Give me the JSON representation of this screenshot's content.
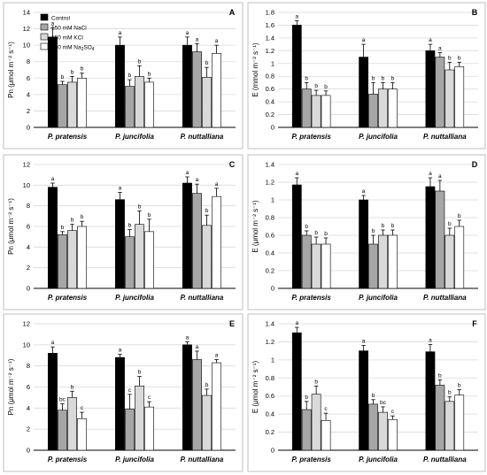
{
  "legend": {
    "entries": [
      {
        "label": "Control",
        "color": "#000000"
      },
      {
        "label": "150 mM NaCl",
        "color": "#a6a6a6"
      },
      {
        "label": "150 mM KCl",
        "color": "#d9d9d9"
      },
      {
        "label": "150 mM Na2SO4",
        "color": "#ffffff"
      }
    ]
  },
  "chart_data": [
    {
      "panel": "A",
      "type": "bar",
      "ylabel": "Pn (μmol m⁻² s⁻¹)",
      "ylim": [
        0,
        14
      ],
      "yticks": [
        0,
        2,
        4,
        6,
        8,
        10,
        12,
        14
      ],
      "grid": true,
      "categories": [
        "P. pratensis",
        "P. juncifolia",
        "P. nuttalliana"
      ],
      "series": [
        {
          "name": "Control",
          "values": [
            11.0,
            10.0,
            10.0
          ],
          "errors": [
            1.1,
            1.0,
            1.0
          ],
          "letters": [
            "a",
            "a",
            "a"
          ]
        },
        {
          "name": "150 mM NaCl",
          "values": [
            5.2,
            5.0,
            9.2
          ],
          "errors": [
            0.4,
            0.8,
            1.0
          ],
          "letters": [
            "b",
            "b",
            "a"
          ]
        },
        {
          "name": "150 mM KCl",
          "values": [
            5.5,
            6.2,
            6.1
          ],
          "errors": [
            0.7,
            1.3,
            1.2
          ],
          "letters": [
            "b",
            "b",
            "b"
          ]
        },
        {
          "name": "150 mM Na2SO4",
          "values": [
            6.0,
            5.5,
            9.0
          ],
          "errors": [
            0.6,
            0.5,
            1.0
          ],
          "letters": [
            "b",
            "b",
            "a"
          ]
        }
      ]
    },
    {
      "panel": "B",
      "type": "bar",
      "ylabel": "E (mmol m⁻² s⁻¹)",
      "ylim": [
        0,
        1.8
      ],
      "yticks": [
        0,
        0.2,
        0.4,
        0.6,
        0.8,
        1,
        1.2,
        1.4,
        1.6,
        1.8
      ],
      "grid": true,
      "categories": [
        "P. pratensis",
        "P. juncifolia",
        "P. nuttalliana"
      ],
      "series": [
        {
          "name": "Control",
          "values": [
            1.6,
            1.1,
            1.2
          ],
          "errors": [
            0.07,
            0.2,
            0.1
          ],
          "letters": [
            "a",
            "a",
            "a"
          ]
        },
        {
          "name": "150 mM NaCl",
          "values": [
            0.6,
            0.52,
            1.1
          ],
          "errors": [
            0.1,
            0.18,
            0.07
          ],
          "letters": [
            "b",
            "b",
            "a"
          ]
        },
        {
          "name": "150 mM KCl",
          "values": [
            0.5,
            0.6,
            0.9
          ],
          "errors": [
            0.08,
            0.1,
            0.12
          ],
          "letters": [
            "b",
            "b",
            "b"
          ]
        },
        {
          "name": "150 mM Na2SO4",
          "values": [
            0.5,
            0.6,
            0.95
          ],
          "errors": [
            0.07,
            0.1,
            0.07
          ],
          "letters": [
            "b",
            "b",
            "b"
          ]
        }
      ]
    },
    {
      "panel": "C",
      "type": "bar",
      "ylabel": "Pn (μmol m⁻² s⁻¹)",
      "ylim": [
        0,
        12
      ],
      "yticks": [
        0,
        2,
        4,
        6,
        8,
        10,
        12
      ],
      "grid": true,
      "categories": [
        "P. pratensis",
        "P. juncifolia",
        "P. nuttalliana"
      ],
      "series": [
        {
          "name": "Control",
          "values": [
            9.8,
            8.6,
            10.2
          ],
          "errors": [
            0.4,
            0.7,
            0.6
          ],
          "letters": [
            "a",
            "a",
            "a"
          ]
        },
        {
          "name": "150 mM NaCl",
          "values": [
            5.2,
            5.0,
            9.2
          ],
          "errors": [
            0.3,
            0.7,
            0.9
          ],
          "letters": [
            "b",
            "b",
            "a"
          ]
        },
        {
          "name": "150 mM KCl",
          "values": [
            5.6,
            6.2,
            6.1
          ],
          "errors": [
            0.6,
            1.3,
            1.0
          ],
          "letters": [
            "b",
            "b",
            "b"
          ]
        },
        {
          "name": "150 mM Na2SO4",
          "values": [
            6.0,
            5.5,
            8.9
          ],
          "errors": [
            0.5,
            1.2,
            0.8
          ],
          "letters": [
            "b",
            "b",
            "a"
          ]
        }
      ]
    },
    {
      "panel": "D",
      "type": "bar",
      "ylabel": "E (μmol m⁻² s⁻¹)",
      "ylim": [
        0,
        1.4
      ],
      "yticks": [
        0,
        0.2,
        0.4,
        0.6,
        0.8,
        1,
        1.2,
        1.4
      ],
      "grid": true,
      "categories": [
        "P. pratensis",
        "P. juncifolia",
        "P. nuttalliana"
      ],
      "series": [
        {
          "name": "Control",
          "values": [
            1.17,
            1.0,
            1.15
          ],
          "errors": [
            0.08,
            0.05,
            0.1
          ],
          "letters": [
            "a",
            "a",
            "a"
          ]
        },
        {
          "name": "150 mM NaCl",
          "values": [
            0.6,
            0.5,
            1.1
          ],
          "errors": [
            0.05,
            0.1,
            0.12
          ],
          "letters": [
            "b",
            "b",
            "a"
          ]
        },
        {
          "name": "150 mM KCl",
          "values": [
            0.5,
            0.6,
            0.6
          ],
          "errors": [
            0.08,
            0.06,
            0.08
          ],
          "letters": [
            "b",
            "b",
            "b"
          ]
        },
        {
          "name": "150 mM Na2SO4",
          "values": [
            0.5,
            0.6,
            0.7
          ],
          "errors": [
            0.07,
            0.06,
            0.07
          ],
          "letters": [
            "b",
            "b",
            "b"
          ]
        }
      ]
    },
    {
      "panel": "E",
      "type": "bar",
      "ylabel": "Pn (μmol m⁻² s⁻¹)",
      "ylim": [
        0,
        12
      ],
      "yticks": [
        0,
        2,
        4,
        6,
        8,
        10,
        12
      ],
      "grid": true,
      "categories": [
        "P. pratensis",
        "P. juncifolia",
        "P. nuttalliana"
      ],
      "series": [
        {
          "name": "Control",
          "values": [
            9.2,
            8.8,
            10.0
          ],
          "errors": [
            0.6,
            0.3,
            0.3
          ],
          "letters": [
            "a",
            "a",
            "a"
          ]
        },
        {
          "name": "150 mM NaCl",
          "values": [
            3.8,
            3.9,
            8.6
          ],
          "errors": [
            0.6,
            1.4,
            0.8
          ],
          "letters": [
            "bc",
            "c",
            "a"
          ]
        },
        {
          "name": "150 mM KCl",
          "values": [
            5.0,
            6.1,
            5.2
          ],
          "errors": [
            0.6,
            0.9,
            0.6
          ],
          "letters": [
            "b",
            "b",
            "b"
          ]
        },
        {
          "name": "150 mM Na2SO4",
          "values": [
            3.0,
            4.1,
            8.3
          ],
          "errors": [
            0.6,
            0.5,
            0.3
          ],
          "letters": [
            "c",
            "c",
            "a"
          ]
        }
      ]
    },
    {
      "panel": "F",
      "type": "bar",
      "ylabel": "E (μmol m⁻² s⁻¹)",
      "ylim": [
        0,
        1.4
      ],
      "yticks": [
        0,
        0.2,
        0.4,
        0.6,
        0.8,
        1,
        1.2,
        1.4
      ],
      "grid": true,
      "categories": [
        "P. pratensis",
        "P. juncifolia",
        "P. nuttalliana"
      ],
      "series": [
        {
          "name": "Control",
          "values": [
            1.3,
            1.1,
            1.09
          ],
          "errors": [
            0.06,
            0.06,
            0.08
          ],
          "letters": [
            "a",
            "a",
            "a"
          ]
        },
        {
          "name": "150 mM NaCl",
          "values": [
            0.45,
            0.51,
            0.72
          ],
          "errors": [
            0.09,
            0.05,
            0.06
          ],
          "letters": [
            "b",
            "b",
            "b"
          ]
        },
        {
          "name": "150 mM KCl",
          "values": [
            0.62,
            0.42,
            0.54
          ],
          "errors": [
            0.09,
            0.06,
            0.05
          ],
          "letters": [
            "b",
            "bc",
            "b"
          ]
        },
        {
          "name": "150 mM Na2SO4",
          "values": [
            0.33,
            0.34,
            0.61
          ],
          "errors": [
            0.08,
            0.04,
            0.06
          ],
          "letters": [
            "c",
            "c",
            "b"
          ]
        }
      ]
    }
  ]
}
